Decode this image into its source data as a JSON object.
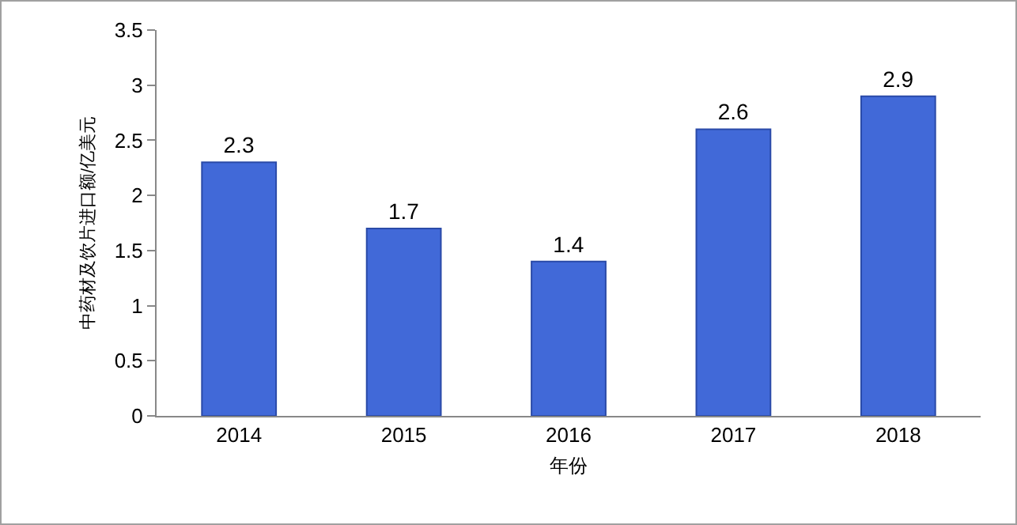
{
  "chart_data": {
    "type": "bar",
    "xlabel": "年份",
    "ylabel": "中药材及饮片进口额/亿美元",
    "categories": [
      "2014",
      "2015",
      "2016",
      "2017",
      "2018"
    ],
    "values": [
      2.3,
      1.7,
      1.4,
      2.6,
      2.9
    ],
    "color": "#4169d8",
    "ylim": [
      0,
      3.5
    ],
    "yticks": [
      0,
      0.5,
      1,
      1.5,
      2,
      2.5,
      3,
      3.5
    ],
    "data_labels": true,
    "grid": false
  }
}
